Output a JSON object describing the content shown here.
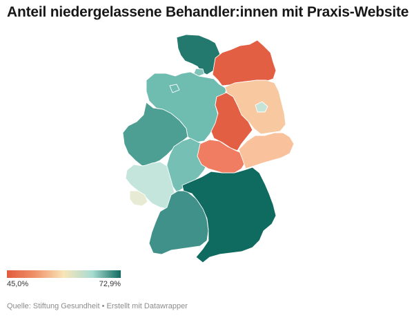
{
  "header": {
    "title": "Anteil niedergelassene Behandler:innen mit Praxis-Website"
  },
  "legend": {
    "min_label": "45,0%",
    "max_label": "72,9%",
    "min_value": 45.0,
    "max_value": 72.9,
    "scale_colors": [
      "#e15b3e",
      "#f0936a",
      "#f8e5b8",
      "#a8dcd1",
      "#0f6b60"
    ]
  },
  "footer": {
    "source": "Quelle: Stiftung Gesundheit • Erstellt mit Datawrapper"
  },
  "map": {
    "type": "choropleth",
    "region": "Deutschland",
    "states": [
      {
        "id": "schleswig-holstein",
        "color": "#23796d"
      },
      {
        "id": "hamburg",
        "color": "#7fc3b9"
      },
      {
        "id": "mecklenburg-vorpommern",
        "color": "#e35f43"
      },
      {
        "id": "niedersachsen",
        "color": "#6fbcb0"
      },
      {
        "id": "bremen",
        "color": "#6fbcb0"
      },
      {
        "id": "berlin",
        "color": "#c5e3d6"
      },
      {
        "id": "brandenburg",
        "color": "#f8c9a0"
      },
      {
        "id": "sachsen-anhalt",
        "color": "#e35f43"
      },
      {
        "id": "nordrhein-westfalen",
        "color": "#4d9f94"
      },
      {
        "id": "hessen",
        "color": "#75bfb4"
      },
      {
        "id": "thueringen",
        "color": "#f07d62"
      },
      {
        "id": "sachsen",
        "color": "#f9c29c"
      },
      {
        "id": "rheinland-pfalz",
        "color": "#c3e5dc"
      },
      {
        "id": "saarland",
        "color": "#e7ebd3"
      },
      {
        "id": "baden-wuerttemberg",
        "color": "#3f918a"
      },
      {
        "id": "bayern",
        "color": "#0f6b60"
      }
    ]
  }
}
